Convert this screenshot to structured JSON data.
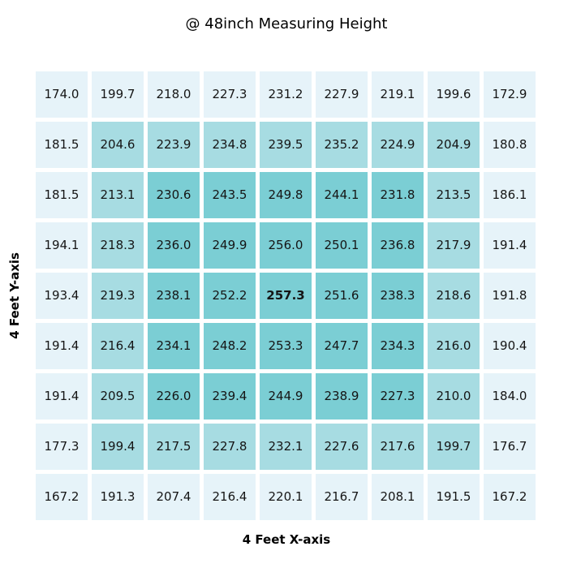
{
  "page": {
    "background_color": "#ffffff"
  },
  "chart_data": {
    "type": "heatmap",
    "title": "@ 48inch Measuring Height",
    "xlabel": "4 Feet X-axis",
    "ylabel": "4 Feet Y-axis",
    "grid": {
      "rows": 9,
      "cols": 9
    },
    "matrix": [
      [
        174.0,
        199.7,
        218.0,
        227.3,
        231.2,
        227.9,
        219.1,
        199.6,
        172.9
      ],
      [
        181.5,
        204.6,
        223.9,
        234.8,
        239.5,
        235.2,
        224.9,
        204.9,
        180.8
      ],
      [
        181.5,
        213.1,
        230.6,
        243.5,
        249.8,
        244.1,
        231.8,
        213.5,
        186.1
      ],
      [
        194.1,
        218.3,
        236.0,
        249.9,
        256.0,
        250.1,
        236.8,
        217.9,
        191.4
      ],
      [
        193.4,
        219.3,
        238.1,
        252.2,
        257.3,
        251.6,
        238.3,
        218.6,
        191.8
      ],
      [
        191.4,
        216.4,
        234.1,
        248.2,
        253.3,
        247.7,
        234.3,
        216.0,
        190.4
      ],
      [
        191.4,
        209.5,
        226.0,
        239.4,
        244.9,
        238.9,
        227.3,
        210.0,
        184.0
      ],
      [
        177.3,
        199.4,
        217.5,
        227.8,
        232.1,
        227.6,
        217.6,
        199.7,
        176.7
      ],
      [
        167.2,
        191.3,
        207.4,
        216.4,
        220.1,
        216.7,
        208.1,
        191.5,
        167.2
      ]
    ],
    "value_decimals": 1,
    "min_value": 167.2,
    "max_value": 257.3,
    "max_cell": {
      "row_index": 4,
      "col_index": 4,
      "bold": true
    },
    "colors": {
      "outer_ring_cell": "#e6f3f9",
      "middle_ring_cell": "#a7dce2",
      "inner_block_cell": "#7bced4",
      "cell_gap": "#ffffff",
      "annotation_text": "#151515",
      "title_text": "#000000"
    },
    "color_rule": "cell fill depends on ring depth from grid border: ring 0 = outer_ring_cell, ring 1 = middle_ring_cell, ring >= 2 = inner_block_cell",
    "legend": "none",
    "grid_lines": "white gaps between cells"
  }
}
